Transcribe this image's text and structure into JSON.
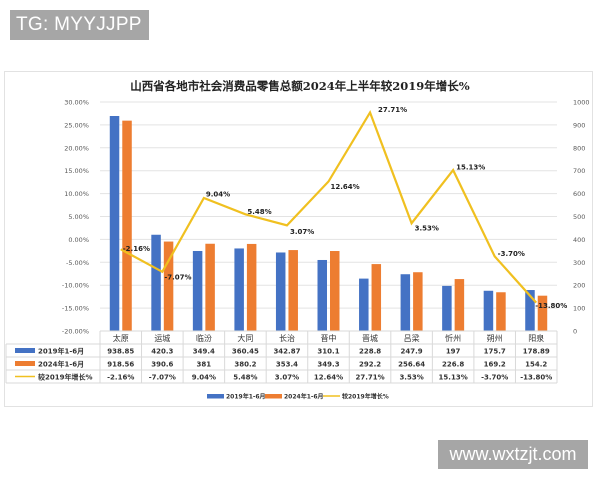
{
  "watermarks": {
    "top": "TG: MYYJJPP",
    "bottom": "www.wxtzjt.com"
  },
  "chart_data": {
    "type": "bar+line",
    "title": "山西省各地市社会消费品零售总额2024年上半年较2019年增长%",
    "categories": [
      "太原",
      "运城",
      "临汾",
      "大同",
      "长治",
      "晋中",
      "晋城",
      "吕梁",
      "忻州",
      "朔州",
      "阳泉"
    ],
    "series": [
      {
        "name": "2019年1-6月",
        "type": "bar",
        "axis": "right",
        "color": "#4472c4",
        "values": [
          938.85,
          420.3,
          349.4,
          360.45,
          342.87,
          310.1,
          228.8,
          247.9,
          197,
          175.7,
          178.89
        ],
        "labels": [
          "938.85",
          "420.3",
          "349.4",
          "360.45",
          "342.87",
          "310.1",
          "228.8",
          "247.9",
          "197",
          "175.7",
          "178.89"
        ]
      },
      {
        "name": "2024年1-6月",
        "type": "bar",
        "axis": "right",
        "color": "#ed7d31",
        "values": [
          918.56,
          390.6,
          381,
          380.2,
          353.4,
          349.3,
          292.2,
          256.64,
          226.8,
          169.2,
          154.2
        ],
        "labels": [
          "918.56",
          "390.6",
          "381",
          "380.2",
          "353.4",
          "349.3",
          "292.2",
          "256.64",
          "226.8",
          "169.2",
          "154.2"
        ]
      },
      {
        "name": "较2019年增长%",
        "type": "line",
        "axis": "left",
        "color": "#f0c020",
        "values": [
          -2.16,
          -7.07,
          9.04,
          5.48,
          3.07,
          12.64,
          27.71,
          3.53,
          15.13,
          -3.7,
          -13.8
        ],
        "labels": [
          "-2.16%",
          "-7.07%",
          "9.04%",
          "5.48%",
          "3.07%",
          "12.64%",
          "27.71%",
          "3.53%",
          "15.13%",
          "-3.70%",
          "-13.80%"
        ]
      }
    ],
    "left_axis": {
      "ylim": [
        -20,
        30
      ],
      "ticks": [
        "30.00%",
        "25.00%",
        "20.00%",
        "15.00%",
        "10.00%",
        "5.00%",
        "0.00%",
        "-5.00%",
        "-10.00%",
        "-15.00%",
        "-20.00%"
      ]
    },
    "right_axis": {
      "ylim": [
        0,
        1000
      ],
      "ticks": [
        "1000",
        "900",
        "800",
        "700",
        "600",
        "500",
        "400",
        "300",
        "200",
        "100",
        "0"
      ]
    },
    "legend": [
      "2019年1-6月",
      "2024年1-6月",
      "较2019年增长%"
    ],
    "legend_position": "bottom",
    "grid": true,
    "data_table": true
  }
}
